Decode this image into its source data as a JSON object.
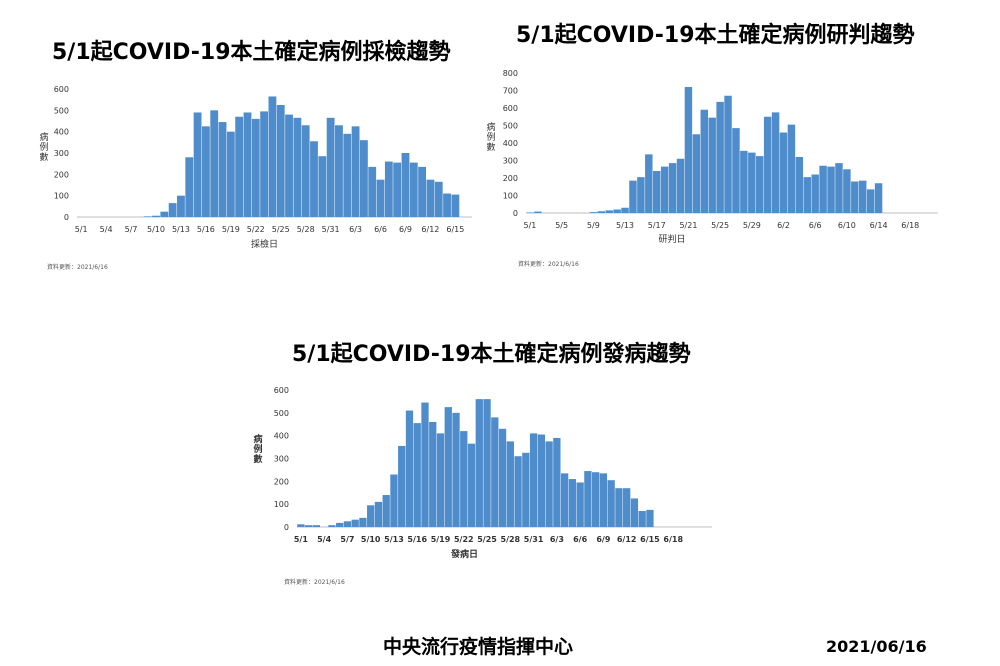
{
  "chart_data": [
    {
      "type": "bar",
      "title": "5/1起COVID-19本土確定病例採檢趨勢",
      "xlabel": "採檢日",
      "ylabel": "病例數",
      "ylim": [
        0,
        600
      ],
      "yticks": [
        0,
        100,
        200,
        300,
        400,
        500,
        600
      ],
      "x_tick_labels": [
        "5/1",
        "5/4",
        "5/7",
        "5/10",
        "5/13",
        "5/16",
        "5/19",
        "5/22",
        "5/25",
        "5/28",
        "5/31",
        "6/3",
        "6/6",
        "6/9",
        "6/12",
        "6/15"
      ],
      "categories": [
        "5/1",
        "5/2",
        "5/3",
        "5/4",
        "5/5",
        "5/6",
        "5/7",
        "5/8",
        "5/9",
        "5/10",
        "5/11",
        "5/12",
        "5/13",
        "5/14",
        "5/15",
        "5/16",
        "5/17",
        "5/18",
        "5/19",
        "5/20",
        "5/21",
        "5/22",
        "5/23",
        "5/24",
        "5/25",
        "5/26",
        "5/27",
        "5/28",
        "5/29",
        "5/30",
        "5/31",
        "6/1",
        "6/2",
        "6/3",
        "6/4",
        "6/5",
        "6/6",
        "6/7",
        "6/8",
        "6/9",
        "6/10",
        "6/11",
        "6/12",
        "6/13",
        "6/14",
        "6/15"
      ],
      "values": [
        0,
        0,
        0,
        0,
        0,
        0,
        0,
        0,
        3,
        6,
        25,
        65,
        100,
        280,
        490,
        425,
        500,
        445,
        400,
        470,
        490,
        460,
        495,
        565,
        525,
        480,
        465,
        430,
        355,
        285,
        465,
        430,
        390,
        425,
        360,
        235,
        175,
        260,
        255,
        300,
        255,
        235,
        175,
        165,
        110,
        105
      ],
      "source_note": "資料更新：2021/6/16",
      "color": "#4e8ccc",
      "grid": false
    },
    {
      "type": "bar",
      "title": "5/1起COVID-19本土確定病例研判趨勢",
      "xlabel": "研判日",
      "ylabel": "病例數",
      "ylim": [
        0,
        800
      ],
      "yticks": [
        0,
        100,
        200,
        300,
        400,
        500,
        600,
        700,
        800
      ],
      "x_tick_labels": [
        "5/1",
        "5/5",
        "5/9",
        "5/13",
        "5/17",
        "5/21",
        "5/25",
        "5/29",
        "6/2",
        "6/6",
        "6/10",
        "6/14",
        "6/18"
      ],
      "categories": [
        "5/1",
        "5/2",
        "5/3",
        "5/4",
        "5/5",
        "5/6",
        "5/7",
        "5/8",
        "5/9",
        "5/10",
        "5/11",
        "5/12",
        "5/13",
        "5/14",
        "5/15",
        "5/16",
        "5/17",
        "5/18",
        "5/19",
        "5/20",
        "5/21",
        "5/22",
        "5/23",
        "5/24",
        "5/25",
        "5/26",
        "5/27",
        "5/28",
        "5/29",
        "5/30",
        "5/31",
        "6/1",
        "6/2",
        "6/3",
        "6/4",
        "6/5",
        "6/6",
        "6/7",
        "6/8",
        "6/9",
        "6/10",
        "6/11",
        "6/12",
        "6/13",
        "6/14",
        "6/15"
      ],
      "values": [
        3,
        8,
        0,
        0,
        0,
        0,
        0,
        0,
        5,
        10,
        15,
        20,
        30,
        185,
        205,
        335,
        240,
        265,
        285,
        310,
        720,
        450,
        590,
        545,
        635,
        670,
        485,
        355,
        345,
        325,
        550,
        575,
        460,
        505,
        320,
        205,
        220,
        270,
        265,
        285,
        250,
        180,
        185,
        135,
        170,
        0
      ],
      "source_note": "資料更新：2021/6/16",
      "color": "#4e8ccc",
      "grid": false
    },
    {
      "type": "bar",
      "title": "5/1起COVID-19本土確定病例發病趨勢",
      "xlabel": "發病日",
      "ylabel": "病例數",
      "ylim": [
        0,
        600
      ],
      "yticks": [
        0,
        100,
        200,
        300,
        400,
        500,
        600
      ],
      "x_tick_labels": [
        "5/1",
        "5/4",
        "5/7",
        "5/10",
        "5/13",
        "5/16",
        "5/19",
        "5/22",
        "5/25",
        "5/28",
        "5/31",
        "6/3",
        "6/6",
        "6/9",
        "6/12",
        "6/15",
        "6/18"
      ],
      "categories": [
        "5/1",
        "5/2",
        "5/3",
        "5/4",
        "5/5",
        "5/6",
        "5/7",
        "5/8",
        "5/9",
        "5/10",
        "5/11",
        "5/12",
        "5/13",
        "5/14",
        "5/15",
        "5/16",
        "5/17",
        "5/18",
        "5/19",
        "5/20",
        "5/21",
        "5/22",
        "5/23",
        "5/24",
        "5/25",
        "5/26",
        "5/27",
        "5/28",
        "5/29",
        "5/30",
        "5/31",
        "6/1",
        "6/2",
        "6/3",
        "6/4",
        "6/5",
        "6/6",
        "6/7",
        "6/8",
        "6/9",
        "6/10",
        "6/11",
        "6/12",
        "6/13",
        "6/14",
        "6/15"
      ],
      "values": [
        12,
        8,
        8,
        0,
        8,
        18,
        25,
        32,
        40,
        95,
        110,
        140,
        230,
        355,
        510,
        455,
        545,
        460,
        410,
        525,
        500,
        420,
        365,
        560,
        560,
        480,
        430,
        375,
        310,
        325,
        410,
        405,
        375,
        390,
        235,
        210,
        195,
        245,
        240,
        235,
        205,
        170,
        170,
        125,
        70,
        75
      ],
      "source_note": "資料更新：2021/6/16",
      "color": "#4e8ccc",
      "grid": false
    }
  ],
  "footer": {
    "org": "中央流行疫情指揮中心",
    "date": "2021/06/16"
  }
}
